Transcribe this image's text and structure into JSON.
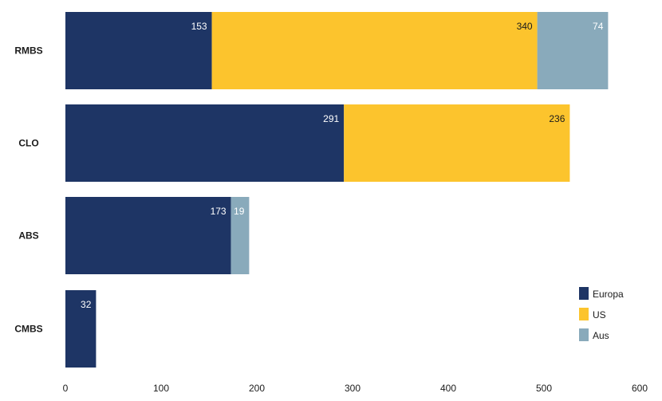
{
  "chart_data": {
    "type": "bar",
    "orientation": "horizontal",
    "stacked": true,
    "categories": [
      "RMBS",
      "CLO",
      "ABS",
      "CMBS"
    ],
    "series": [
      {
        "name": "Europa",
        "color": "#1e3565",
        "values": [
          153,
          291,
          173,
          32
        ]
      },
      {
        "name": "US",
        "color": "#fcc42d",
        "values": [
          340,
          236,
          0,
          0
        ]
      },
      {
        "name": "Aus",
        "color": "#89aabb",
        "values": [
          74,
          0,
          19,
          0
        ]
      }
    ],
    "xlim": [
      0,
      600
    ],
    "xticks": [
      0,
      100,
      200,
      300,
      400,
      500,
      600
    ],
    "title": "",
    "xlabel": "",
    "ylabel": "",
    "grid": false,
    "legend_position": "bottom-right"
  }
}
